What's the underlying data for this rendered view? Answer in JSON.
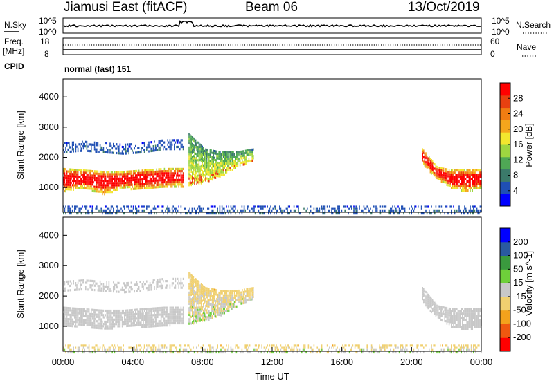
{
  "header": {
    "station": "Jiamusi East (fitACF)",
    "beam": "Beam 06",
    "date": "13/Oct/2019"
  },
  "panels": {
    "nsky": {
      "label": "N.Sky",
      "left_ticks": [
        "10^5",
        "10^0"
      ],
      "right_ticks": [
        "10^5",
        "10^0"
      ],
      "right_label": "N.Search",
      "right_legend_style": "dotted"
    },
    "freq": {
      "label_line1": "Freq.",
      "label_line2": "[MHz]",
      "left_ticks": [
        "18",
        "8"
      ],
      "right_ticks": [
        "60",
        "0"
      ],
      "right_label": "Nave",
      "right_legend_style": "dotted"
    },
    "cpid": {
      "label": "CPID",
      "text": "normal (fast) 151"
    }
  },
  "x_axis": {
    "title": "Time UT",
    "ticks": [
      "00:00",
      "04:00",
      "08:00",
      "12:00",
      "16:00",
      "20:00",
      "00:00"
    ]
  },
  "chart_data": [
    {
      "type": "heatmap",
      "name": "Power",
      "ylabel": "Slant Range [km]",
      "yticks": [
        "1000",
        "2000",
        "3000",
        "4000"
      ],
      "ylim": [
        180,
        4600
      ],
      "xlim_hours": [
        0,
        24
      ],
      "colorbar": {
        "label": "Power [dB]",
        "ticks": [
          "4",
          "8",
          "12",
          "16",
          "20",
          "24",
          "28"
        ],
        "colors": [
          "#0000ff",
          "#1f4fb4",
          "#3b7a6a",
          "#4fa855",
          "#9ed640",
          "#f2e62e",
          "#f4a61c",
          "#f07d12",
          "#e84010",
          "#ff0000"
        ]
      },
      "regions": [
        {
          "label": "main band",
          "t_start": 0.0,
          "t_end": 6.9,
          "range_low": [
            900,
            1000,
            800,
            1000,
            950,
            1000,
            1050
          ],
          "range_high": [
            1650,
            1600,
            1550,
            1550,
            1600,
            1650,
            1650
          ],
          "level": "high"
        },
        {
          "label": "upper band",
          "t_start": 0.0,
          "t_end": 6.9,
          "range_low": [
            2200,
            2250,
            2200,
            2150,
            2200,
            2300,
            2300
          ],
          "range_high": [
            2500,
            2550,
            2500,
            2450,
            2500,
            2600,
            2600
          ],
          "level": "low"
        },
        {
          "label": "morning patch",
          "t_start": 7.2,
          "t_end": 10.9,
          "range_low": [
            1100,
            1200,
            1400,
            1700,
            1900
          ],
          "range_high": [
            2800,
            2300,
            2200,
            2200,
            2300
          ],
          "level": "mid"
        },
        {
          "label": "evening band",
          "t_start": 20.6,
          "t_end": 24.0,
          "range_low": [
            1800,
            1300,
            1000,
            900,
            1000
          ],
          "range_high": [
            2300,
            1700,
            1600,
            1600,
            1600
          ],
          "level": "high"
        },
        {
          "label": "near range",
          "t_start": 0.0,
          "t_end": 24.0,
          "range_low": [
            180
          ],
          "range_high": [
            400
          ],
          "level": "low"
        }
      ]
    },
    {
      "type": "heatmap",
      "name": "Velocity",
      "ylabel": "Slant Range [km]",
      "yticks": [
        "1000",
        "2000",
        "3000",
        "4000"
      ],
      "ylim": [
        180,
        4600
      ],
      "xlim_hours": [
        0,
        24
      ],
      "colorbar": {
        "label": "Velocity [m s^-1]",
        "ticks": [
          "-200",
          "-100",
          "-50",
          "-15",
          "15",
          "50",
          "100",
          "200"
        ],
        "colors": [
          "#ff0000",
          "#ef5810",
          "#f4a21c",
          "#f0d070",
          "#c8c8c8",
          "#6ed03a",
          "#3a9a3e",
          "#2a5aa0",
          "#0000ff"
        ]
      },
      "regions": [
        {
          "label": "ground scatter band",
          "t_start": 0.0,
          "t_end": 6.9,
          "range_low": [
            1000,
            1050,
            900,
            1050,
            1000,
            1050,
            1100
          ],
          "range_high": [
            1650,
            1600,
            1550,
            1550,
            1600,
            1650,
            1650
          ],
          "level": "zero"
        },
        {
          "label": "upper band",
          "t_start": 0.0,
          "t_end": 6.9,
          "range_low": [
            2200,
            2250,
            2200,
            2150,
            2200,
            2300,
            2300
          ],
          "range_high": [
            2500,
            2550,
            2500,
            2450,
            2500,
            2600,
            2600
          ],
          "level": "zero"
        },
        {
          "label": "morning patch",
          "t_start": 7.2,
          "t_end": 10.9,
          "range_low": [
            1100,
            1200,
            1400,
            1700,
            1900
          ],
          "range_high": [
            2800,
            2300,
            2200,
            2200,
            2300
          ],
          "level": "neg"
        },
        {
          "label": "evening band",
          "t_start": 20.6,
          "t_end": 24.0,
          "range_low": [
            1800,
            1300,
            1000,
            900,
            1000
          ],
          "range_high": [
            2300,
            1700,
            1600,
            1600,
            1600
          ],
          "level": "zero"
        },
        {
          "label": "near range",
          "t_start": 0.0,
          "t_end": 24.0,
          "range_low": [
            180
          ],
          "range_high": [
            400
          ],
          "level": "neg"
        }
      ]
    }
  ]
}
